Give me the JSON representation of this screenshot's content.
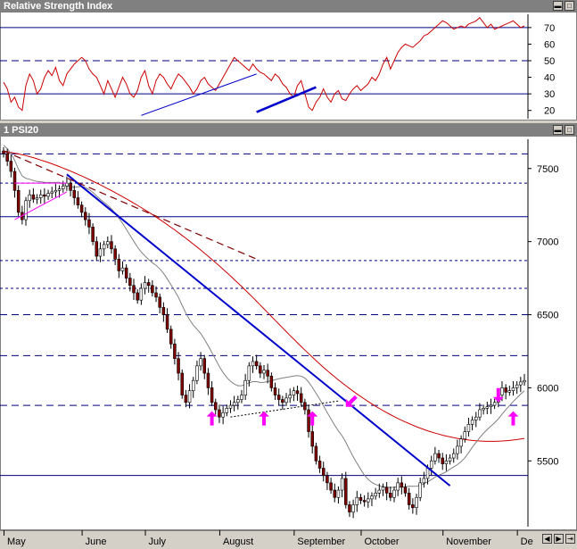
{
  "rsi_panel": {
    "title": "Relative Strength Index",
    "y_ticks": [
      "70",
      "60",
      "50",
      "40",
      "30",
      "20"
    ],
    "y_tick_values": [
      70,
      60,
      50,
      40,
      30,
      20
    ],
    "ref_lines": [
      70,
      50,
      30
    ]
  },
  "price_panel": {
    "title": "1 PSI20",
    "y_ticks": [
      "7500",
      "7000",
      "6500",
      "6000",
      "5500"
    ],
    "y_tick_values": [
      7500,
      7000,
      6500,
      6000,
      5500
    ]
  },
  "x_axis": {
    "months": [
      "May",
      "June",
      "July",
      "August",
      "September",
      "October",
      "November",
      "De"
    ]
  },
  "colors": {
    "rsi_line": "#cc0000",
    "trendline": "#0000cc",
    "ma_long": "#cc0000",
    "ma_short": "#808080",
    "arrow": "#ff00ff",
    "candle_up": "#ffffff",
    "candle_down": "#800000",
    "grid_blue": "#000080"
  },
  "chart_data": [
    {
      "type": "line",
      "title": "Relative Strength Index",
      "ylim": [
        15,
        78
      ],
      "x": [
        0,
        1,
        2,
        3,
        4,
        5,
        6,
        7,
        8,
        9,
        10,
        11,
        12,
        13,
        14,
        15,
        16,
        17,
        18,
        19,
        20,
        21,
        22,
        23,
        24,
        25,
        26,
        27,
        28,
        29,
        30,
        31,
        32,
        33,
        34,
        35,
        36,
        37,
        38,
        39,
        40,
        41,
        42,
        43,
        44,
        45,
        46,
        47,
        48,
        49,
        50,
        51,
        52,
        53,
        54,
        55,
        56,
        57,
        58,
        59,
        60,
        61,
        62,
        63,
        64,
        65,
        66,
        67,
        68,
        69,
        70,
        71,
        72,
        73,
        74,
        75,
        76,
        77,
        78,
        79,
        80,
        81,
        82,
        83,
        84,
        85,
        86,
        87,
        88,
        89,
        90,
        91,
        92,
        93,
        94,
        95,
        96,
        97,
        98,
        99,
        100,
        101,
        102,
        103,
        104,
        105,
        106,
        107,
        108,
        109,
        110,
        111,
        112,
        113,
        114,
        115,
        116,
        117,
        118,
        119,
        120,
        121,
        122,
        123,
        124,
        125,
        126,
        127,
        128,
        129,
        130,
        131,
        132,
        133,
        134,
        135,
        136,
        137,
        138,
        139,
        140
      ],
      "series": [
        {
          "values": [
            37,
            33,
            25,
            28,
            22,
            20,
            35,
            42,
            38,
            30,
            33,
            40,
            44,
            41,
            46,
            38,
            35,
            42,
            45,
            48,
            50,
            52,
            50,
            45,
            42,
            40,
            35,
            30,
            38,
            33,
            28,
            34,
            40,
            36,
            30,
            28,
            32,
            40,
            44,
            35,
            30,
            38,
            42,
            40,
            36,
            33,
            38,
            42,
            40,
            37,
            34,
            30,
            33,
            38,
            40,
            36,
            34,
            32,
            36,
            40,
            44,
            48,
            52,
            50,
            48,
            46,
            44,
            48,
            45,
            43,
            42,
            40,
            38,
            42,
            40,
            36,
            34,
            30,
            28,
            35,
            38,
            30,
            22,
            20,
            25,
            28,
            33,
            28,
            25,
            30,
            32,
            27,
            26,
            30,
            33,
            35,
            32,
            34,
            36,
            40,
            38,
            42,
            48,
            52,
            45,
            50,
            55,
            58,
            60,
            59,
            58,
            60,
            62,
            65,
            66,
            68,
            70,
            72,
            74,
            73,
            71,
            69,
            70,
            71,
            70,
            72,
            73,
            74,
            76,
            73,
            70,
            72,
            69,
            70,
            71,
            72,
            73,
            74,
            72,
            70,
            71
          ]
        }
      ]
    },
    {
      "type": "candlestick",
      "title": "1 PSI20",
      "ylim": [
        5050,
        7700
      ],
      "x": [
        0,
        1,
        2,
        3,
        4,
        5,
        6,
        7,
        8,
        9,
        10,
        11,
        12,
        13,
        14,
        15,
        16,
        17,
        18,
        19,
        20,
        21,
        22,
        23,
        24,
        25,
        26,
        27,
        28,
        29,
        30,
        31,
        32,
        33,
        34,
        35,
        36,
        37,
        38,
        39,
        40,
        41,
        42,
        43,
        44,
        45,
        46,
        47,
        48,
        49,
        50,
        51,
        52,
        53,
        54,
        55,
        56,
        57,
        58,
        59,
        60,
        61,
        62,
        63,
        64,
        65,
        66,
        67,
        68,
        69,
        70,
        71,
        72,
        73,
        74,
        75,
        76,
        77,
        78,
        79,
        80,
        81,
        82,
        83,
        84,
        85,
        86,
        87,
        88,
        89,
        90,
        91,
        92,
        93,
        94,
        95,
        96,
        97,
        98,
        99,
        100,
        101,
        102,
        103,
        104,
        105,
        106,
        107,
        108,
        109,
        110,
        111,
        112,
        113,
        114,
        115,
        116,
        117,
        118,
        119,
        120,
        121,
        122,
        123,
        124,
        125,
        126,
        127,
        128,
        129,
        130,
        131,
        132,
        133,
        134,
        135,
        136,
        137,
        138,
        139,
        140
      ],
      "close": [
        7600,
        7550,
        7480,
        7350,
        7200,
        7150,
        7280,
        7320,
        7290,
        7300,
        7320,
        7310,
        7330,
        7340,
        7350,
        7360,
        7380,
        7400,
        7350,
        7300,
        7250,
        7200,
        7150,
        7100,
        7000,
        6900,
        6950,
        6980,
        7000,
        6950,
        6880,
        6800,
        6820,
        6750,
        6700,
        6650,
        6600,
        6680,
        6720,
        6700,
        6650,
        6620,
        6550,
        6500,
        6400,
        6300,
        6200,
        6100,
        5950,
        5900,
        5980,
        6050,
        6150,
        6200,
        6100,
        6000,
        5900,
        5850,
        5800,
        5830,
        5860,
        5880,
        5900,
        5920,
        5950,
        6050,
        6150,
        6180,
        6150,
        6100,
        6120,
        6080,
        6000,
        5950,
        5920,
        5900,
        5930,
        5950,
        5980,
        5960,
        5900,
        5850,
        5700,
        5600,
        5500,
        5450,
        5400,
        5350,
        5300,
        5250,
        5300,
        5380,
        5200,
        5150,
        5200,
        5250,
        5230,
        5220,
        5240,
        5260,
        5280,
        5300,
        5320,
        5280,
        5250,
        5300,
        5350,
        5320,
        5280,
        5200,
        5180,
        5250,
        5350,
        5380,
        5450,
        5500,
        5550,
        5520,
        5480,
        5500,
        5520,
        5550,
        5600,
        5650,
        5700,
        5750,
        5780,
        5800,
        5850,
        5860,
        5870,
        5880,
        5900,
        5950,
        6000,
        5970,
        5980,
        6000,
        6020,
        6040,
        6050
      ],
      "ma_long": [
        7620,
        7615,
        7610,
        7605,
        7600,
        7594,
        7588,
        7581,
        7574,
        7566,
        7558,
        7550,
        7541,
        7532,
        7523,
        7513,
        7503,
        7493,
        7482,
        7471,
        7460,
        7449,
        7437,
        7425,
        7413,
        7401,
        7388,
        7375,
        7362,
        7349,
        7335,
        7321,
        7307,
        7293,
        7278,
        7263,
        7248,
        7233,
        7217,
        7201,
        7185,
        7168,
        7151,
        7134,
        7116,
        7098,
        7080,
        7061,
        7042,
        7023,
        7003,
        6983,
        6963,
        6942,
        6921,
        6900,
        6878,
        6856,
        6834,
        6811,
        6788,
        6765,
        6741,
        6717,
        6693,
        6668,
        6643,
        6618,
        6592,
        6566,
        6540,
        6514,
        6488,
        6462,
        6436,
        6410,
        6384,
        6358,
        6333,
        6308,
        6283,
        6258,
        6234,
        6210,
        6186,
        6163,
        6140,
        6118,
        6096,
        6075,
        6054,
        6034,
        6014,
        5995,
        5976,
        5958,
        5940,
        5923,
        5906,
        5890,
        5874,
        5859,
        5844,
        5830,
        5816,
        5803,
        5790,
        5778,
        5766,
        5755,
        5744,
        5734,
        5724,
        5715,
        5706,
        5698,
        5690,
        5683,
        5676,
        5670,
        5664,
        5659,
        5654,
        5650,
        5646,
        5643,
        5640,
        5638,
        5636,
        5635,
        5634,
        5634,
        5634,
        5635,
        5636,
        5638,
        5640,
        5643,
        5646,
        5650,
        5654
      ]
    }
  ]
}
